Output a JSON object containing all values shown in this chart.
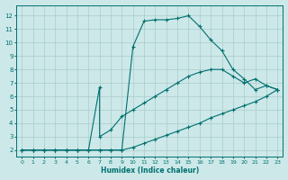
{
  "xlabel": "Humidex (Indice chaleur)",
  "bg_color": "#cce8e8",
  "grid_color": "#aacccc",
  "line_color": "#007070",
  "xlim": [
    -0.5,
    23.5
  ],
  "ylim": [
    1.5,
    12.8
  ],
  "xticks": [
    0,
    1,
    2,
    3,
    4,
    5,
    6,
    7,
    8,
    9,
    10,
    11,
    12,
    13,
    14,
    15,
    16,
    17,
    18,
    19,
    20,
    21,
    22,
    23
  ],
  "yticks": [
    2,
    3,
    4,
    5,
    6,
    7,
    8,
    9,
    10,
    11,
    12
  ],
  "curves": [
    {
      "x": [
        0,
        1,
        2,
        3,
        4,
        5,
        6,
        7,
        8,
        9,
        10,
        11,
        12,
        13,
        14,
        15,
        16,
        17,
        18,
        19,
        20,
        21,
        22,
        23
      ],
      "y": [
        2,
        2,
        2,
        2,
        2,
        2,
        2,
        2,
        2,
        2,
        9.7,
        11.6,
        11.7,
        11.7,
        11.8,
        12.0,
        11.2,
        10.2,
        9.4,
        8.0,
        7.3,
        6.5,
        6.8,
        6.5
      ]
    },
    {
      "x": [
        0,
        1,
        2,
        3,
        4,
        5,
        6,
        7,
        7,
        8,
        9,
        10,
        11,
        12,
        13,
        14,
        15,
        16,
        17,
        18,
        19,
        20,
        21,
        22,
        23
      ],
      "y": [
        2,
        2,
        2,
        2,
        2,
        2,
        2,
        6.7,
        3.0,
        3.5,
        4.5,
        5.0,
        5.5,
        6.0,
        6.5,
        7.0,
        7.5,
        7.8,
        8.0,
        8.0,
        7.5,
        7.0,
        7.3,
        6.8,
        6.5
      ]
    },
    {
      "x": [
        0,
        1,
        2,
        3,
        4,
        5,
        6,
        7,
        8,
        9,
        10,
        11,
        12,
        13,
        14,
        15,
        16,
        17,
        18,
        19,
        20,
        21,
        22,
        23
      ],
      "y": [
        2,
        2,
        2,
        2,
        2,
        2,
        2,
        2,
        2,
        2,
        2.2,
        2.5,
        2.8,
        3.1,
        3.4,
        3.7,
        4.0,
        4.4,
        4.7,
        5.0,
        5.3,
        5.6,
        6.0,
        6.5
      ]
    }
  ]
}
